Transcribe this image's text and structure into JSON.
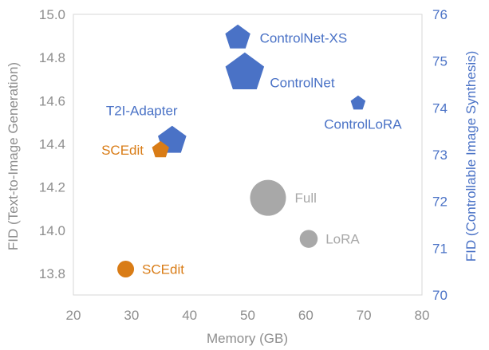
{
  "chart_data": {
    "type": "scatter",
    "xlabel": "Memory (GB)",
    "ylabel_left": "FID (Text-to-Image Generation)",
    "ylabel_right": "FID (Controllable Image Synthesis)",
    "xlim": [
      20,
      80
    ],
    "ylim_left": [
      13.7,
      15.0
    ],
    "ylim_right": [
      70,
      76
    ],
    "x_ticks": [
      "20",
      "30",
      "40",
      "50",
      "60",
      "70",
      "80"
    ],
    "y_left_ticks": [
      "13.8",
      "14.0",
      "14.2",
      "14.4",
      "14.6",
      "14.8",
      "15.0"
    ],
    "y_right_ticks": [
      "70",
      "71",
      "72",
      "73",
      "74",
      "75",
      "76"
    ],
    "colors": {
      "gray": "#a8a8a8",
      "orange": "#d97c16",
      "blue": "#4a72c6"
    },
    "series": [
      {
        "name": "Text-to-Image Generation",
        "axis": "left",
        "points": [
          {
            "label": "Full",
            "x": 53.5,
            "y": 14.15,
            "size": 3.0,
            "shape": "circle",
            "color": "#a8a8a8"
          },
          {
            "label": "LoRA",
            "x": 60.5,
            "y": 13.96,
            "size": 1.5,
            "shape": "circle",
            "color": "#a8a8a8"
          },
          {
            "label": "SCEdit",
            "x": 29.0,
            "y": 13.82,
            "size": 1.4,
            "shape": "circle",
            "color": "#d97c16"
          }
        ]
      },
      {
        "name": "Controllable Image Synthesis",
        "axis": "right",
        "points": [
          {
            "label": "ControlNet-XS",
            "x": 48.3,
            "y": 75.5,
            "size": 2.2,
            "shape": "pentagon",
            "color": "#4a72c6"
          },
          {
            "label": "ControlNet",
            "x": 49.5,
            "y": 74.75,
            "size": 3.4,
            "shape": "pentagon",
            "color": "#4a72c6"
          },
          {
            "label": "ControlLoRA",
            "x": 69.0,
            "y": 74.1,
            "size": 1.3,
            "shape": "pentagon",
            "color": "#4a72c6"
          },
          {
            "label": "T2I-Adapter",
            "x": 37.0,
            "y": 73.3,
            "size": 2.5,
            "shape": "pentagon",
            "color": "#4a72c6"
          },
          {
            "label": "SCEdit",
            "x": 35.0,
            "y": 73.1,
            "size": 1.5,
            "shape": "pentagon",
            "color": "#d97c16"
          }
        ]
      }
    ]
  }
}
